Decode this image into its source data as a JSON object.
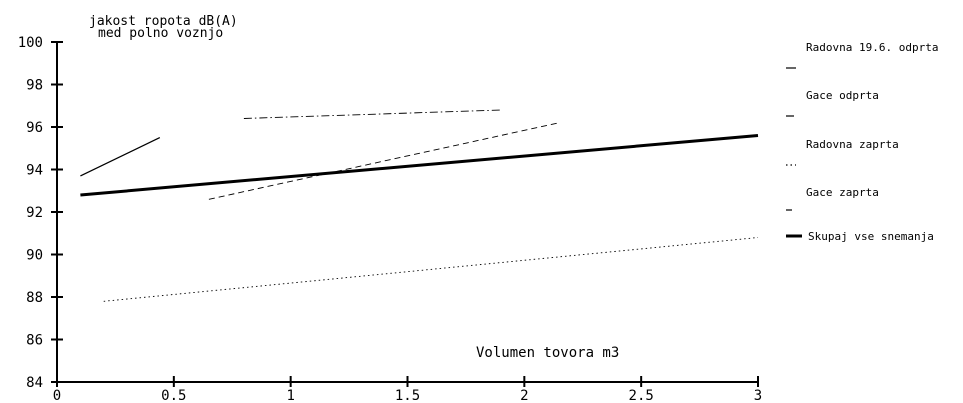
{
  "chart_data": {
    "type": "line",
    "title_lines": [
      "jakost ropota dB(A)",
      "med polno voznjo"
    ],
    "xlabel": "Volumen tovora m3",
    "xlim": [
      0,
      3
    ],
    "ylim": [
      84,
      100
    ],
    "x_ticks": [
      {
        "value": 0,
        "label": "0"
      },
      {
        "value": 0.5,
        "label": "0.5"
      },
      {
        "value": 1,
        "label": "1"
      },
      {
        "value": 1.5,
        "label": "1.5"
      },
      {
        "value": 2,
        "label": "2"
      },
      {
        "value": 2.5,
        "label": "2.5"
      },
      {
        "value": 3,
        "label": "3"
      }
    ],
    "y_ticks": [
      {
        "value": 84,
        "label": "84"
      },
      {
        "value": 86,
        "label": "86"
      },
      {
        "value": 88,
        "label": "88"
      },
      {
        "value": 90,
        "label": "90"
      },
      {
        "value": 92,
        "label": "92"
      },
      {
        "value": 94,
        "label": "94"
      },
      {
        "value": 96,
        "label": "96"
      },
      {
        "value": 98,
        "label": "98"
      },
      {
        "value": 100,
        "label": "100"
      }
    ],
    "grid": false,
    "legend_position": "right",
    "series": [
      {
        "name": "Radovna 19.6. odprta",
        "style": "solid",
        "width": 1.3,
        "x": [
          0.1,
          0.44
        ],
        "y": [
          93.7,
          95.5
        ]
      },
      {
        "name": "Gace odprta",
        "style": "dashdot",
        "width": 0.9,
        "x": [
          0.8,
          1.9
        ],
        "y": [
          96.4,
          96.8
        ]
      },
      {
        "name": "Radovna zaprta",
        "style": "dotted",
        "width": 0.9,
        "x": [
          0.2,
          3.0
        ],
        "y": [
          87.8,
          90.8
        ]
      },
      {
        "name": "Gace zaprta",
        "style": "dashed",
        "width": 0.9,
        "x": [
          0.65,
          2.15
        ],
        "y": [
          92.6,
          96.2
        ]
      },
      {
        "name": "Skupaj vse snemanja",
        "style": "solid",
        "width": 3,
        "x": [
          0.1,
          3.0
        ],
        "y": [
          92.8,
          95.6
        ]
      }
    ]
  }
}
